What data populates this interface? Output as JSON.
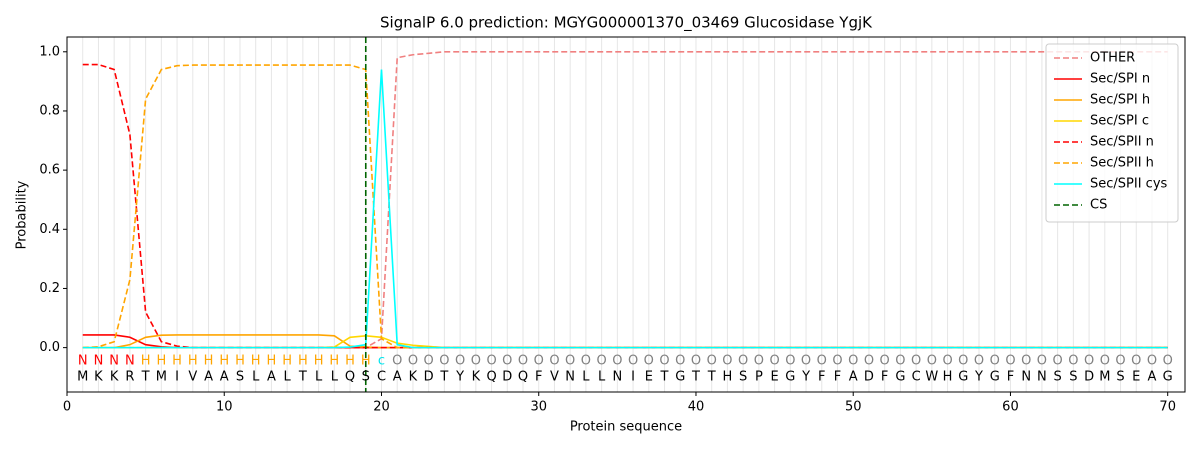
{
  "chart_data": {
    "type": "line",
    "title": "SignalP 6.0 prediction: MGYG000001370_03469 Glucosidase YgjK",
    "xlabel": "Protein sequence",
    "ylabel": "Probability",
    "x": [
      1,
      2,
      3,
      4,
      5,
      6,
      7,
      8,
      9,
      10,
      11,
      12,
      13,
      14,
      15,
      16,
      17,
      18,
      19,
      20,
      21,
      22,
      23,
      24,
      25,
      26,
      27,
      28,
      29,
      30,
      31,
      32,
      33,
      34,
      35,
      36,
      37,
      38,
      39,
      40,
      41,
      42,
      43,
      44,
      45,
      46,
      47,
      48,
      49,
      50,
      51,
      52,
      53,
      54,
      55,
      56,
      57,
      58,
      59,
      60,
      61,
      62,
      63,
      64,
      65,
      66,
      67,
      68,
      69,
      70
    ],
    "residues": [
      "M",
      "K",
      "K",
      "R",
      "T",
      "M",
      "I",
      "V",
      "A",
      "A",
      "S",
      "L",
      "A",
      "L",
      "T",
      "L",
      "L",
      "Q",
      "S",
      "C",
      "A",
      "K",
      "D",
      "T",
      "Y",
      "K",
      "Q",
      "D",
      "Q",
      "F",
      "V",
      "N",
      "L",
      "L",
      "N",
      "I",
      "E",
      "T",
      "G",
      "T",
      "T",
      "H",
      "S",
      "P",
      "E",
      "G",
      "Y",
      "F",
      "F",
      "A",
      "D",
      "F",
      "G",
      "C",
      "W",
      "H",
      "G",
      "Y",
      "G",
      "F",
      "N",
      "N",
      "S",
      "S",
      "D",
      "M",
      "S",
      "E",
      "A",
      "G"
    ],
    "region_labels": [
      "N",
      "N",
      "N",
      "N",
      "H",
      "H",
      "H",
      "H",
      "H",
      "H",
      "H",
      "H",
      "H",
      "H",
      "H",
      "H",
      "H",
      "H",
      "H",
      "c",
      "O",
      "O",
      "O",
      "O",
      "O",
      "O",
      "O",
      "O",
      "O",
      "O",
      "O",
      "O",
      "O",
      "O",
      "O",
      "O",
      "O",
      "O",
      "O",
      "O",
      "O",
      "O",
      "O",
      "O",
      "O",
      "O",
      "O",
      "O",
      "O",
      "O",
      "O",
      "O",
      "O",
      "O",
      "O",
      "O",
      "O",
      "O",
      "O",
      "O",
      "O",
      "O",
      "O",
      "O",
      "O",
      "O",
      "O",
      "O",
      "O",
      "O"
    ],
    "region_colors": {
      "N": "#ff0000",
      "H": "#ffa500",
      "c": "#00e5ee",
      "O": "#808080"
    },
    "series": [
      {
        "name": "OTHER",
        "color": "#f08080",
        "linestyle": "dashed",
        "values": [
          0,
          0,
          0,
          0,
          0,
          0,
          0,
          0,
          0,
          0,
          0,
          0,
          0,
          0,
          0,
          0,
          0,
          0,
          0,
          0.03,
          0.98,
          0.99,
          0.995,
          1,
          1,
          1,
          1,
          1,
          1,
          1,
          1,
          1,
          1,
          1,
          1,
          1,
          1,
          1,
          1,
          1,
          1,
          1,
          1,
          1,
          1,
          1,
          1,
          1,
          1,
          1,
          1,
          1,
          1,
          1,
          1,
          1,
          1,
          1,
          1,
          1,
          1,
          1,
          1,
          1,
          1,
          1,
          1,
          1,
          1,
          1
        ]
      },
      {
        "name": "Sec/SPI n",
        "color": "#ff0000",
        "linestyle": "solid",
        "values": [
          0.043,
          0.043,
          0.043,
          0.035,
          0.01,
          0.003,
          0,
          0,
          0,
          0,
          0,
          0,
          0,
          0,
          0,
          0,
          0,
          0,
          0,
          0,
          0,
          0,
          0,
          0,
          0,
          0,
          0,
          0,
          0,
          0,
          0,
          0,
          0,
          0,
          0,
          0,
          0,
          0,
          0,
          0,
          0,
          0,
          0,
          0,
          0,
          0,
          0,
          0,
          0,
          0,
          0,
          0,
          0,
          0,
          0,
          0,
          0,
          0,
          0,
          0,
          0,
          0,
          0,
          0,
          0,
          0,
          0,
          0,
          0,
          0
        ]
      },
      {
        "name": "Sec/SPI h",
        "color": "#ffa500",
        "linestyle": "solid",
        "values": [
          0,
          0,
          0,
          0.01,
          0.035,
          0.042,
          0.043,
          0.043,
          0.043,
          0.043,
          0.043,
          0.043,
          0.043,
          0.043,
          0.043,
          0.043,
          0.04,
          0.005,
          0.002,
          0,
          0,
          0,
          0,
          0,
          0,
          0,
          0,
          0,
          0,
          0,
          0,
          0,
          0,
          0,
          0,
          0,
          0,
          0,
          0,
          0,
          0,
          0,
          0,
          0,
          0,
          0,
          0,
          0,
          0,
          0,
          0,
          0,
          0,
          0,
          0,
          0,
          0,
          0,
          0,
          0,
          0,
          0,
          0,
          0,
          0,
          0,
          0,
          0,
          0,
          0
        ]
      },
      {
        "name": "Sec/SPI c",
        "color": "#ffd700",
        "linestyle": "solid",
        "values": [
          0,
          0,
          0,
          0,
          0,
          0,
          0,
          0,
          0,
          0,
          0,
          0,
          0,
          0,
          0,
          0,
          0.002,
          0.035,
          0.04,
          0.035,
          0.015,
          0.008,
          0.004,
          0,
          0,
          0,
          0,
          0,
          0,
          0,
          0,
          0,
          0,
          0,
          0,
          0,
          0,
          0,
          0,
          0,
          0,
          0,
          0,
          0,
          0,
          0,
          0,
          0,
          0,
          0,
          0,
          0,
          0,
          0,
          0,
          0,
          0,
          0,
          0,
          0,
          0,
          0,
          0,
          0,
          0,
          0,
          0,
          0,
          0,
          0
        ]
      },
      {
        "name": "Sec/SPII n",
        "color": "#ff0000",
        "linestyle": "dashed",
        "values": [
          0.957,
          0.957,
          0.94,
          0.72,
          0.12,
          0.02,
          0.005,
          0,
          0,
          0,
          0,
          0,
          0,
          0,
          0,
          0,
          0,
          0,
          0,
          0,
          0,
          0,
          0,
          0,
          0,
          0,
          0,
          0,
          0,
          0,
          0,
          0,
          0,
          0,
          0,
          0,
          0,
          0,
          0,
          0,
          0,
          0,
          0,
          0,
          0,
          0,
          0,
          0,
          0,
          0,
          0,
          0,
          0,
          0,
          0,
          0,
          0,
          0,
          0,
          0,
          0,
          0,
          0,
          0,
          0,
          0,
          0,
          0,
          0,
          0
        ]
      },
      {
        "name": "Sec/SPII h",
        "color": "#ffa500",
        "linestyle": "dashed",
        "values": [
          0,
          0.003,
          0.02,
          0.23,
          0.84,
          0.94,
          0.953,
          0.955,
          0.955,
          0.955,
          0.955,
          0.955,
          0.955,
          0.955,
          0.955,
          0.955,
          0.955,
          0.955,
          0.94,
          0.03,
          0,
          0,
          0,
          0,
          0,
          0,
          0,
          0,
          0,
          0,
          0,
          0,
          0,
          0,
          0,
          0,
          0,
          0,
          0,
          0,
          0,
          0,
          0,
          0,
          0,
          0,
          0,
          0,
          0,
          0,
          0,
          0,
          0,
          0,
          0,
          0,
          0,
          0,
          0,
          0,
          0,
          0,
          0,
          0,
          0,
          0,
          0,
          0,
          0,
          0
        ]
      },
      {
        "name": "Sec/SPII cys",
        "color": "#00ffff",
        "linestyle": "solid",
        "values": [
          0,
          0,
          0,
          0,
          0,
          0,
          0,
          0,
          0,
          0,
          0,
          0,
          0,
          0,
          0,
          0,
          0,
          0.002,
          0.01,
          0.94,
          0.01,
          0,
          0,
          0,
          0,
          0,
          0,
          0,
          0,
          0,
          0,
          0,
          0,
          0,
          0,
          0,
          0,
          0,
          0,
          0,
          0,
          0,
          0,
          0,
          0,
          0,
          0,
          0,
          0,
          0,
          0,
          0,
          0,
          0,
          0,
          0,
          0,
          0,
          0,
          0,
          0,
          0,
          0,
          0,
          0,
          0,
          0,
          0,
          0,
          0
        ]
      }
    ],
    "vlines": [
      {
        "name": "CS",
        "color": "#006400",
        "linestyle": "dashed",
        "x": 19
      }
    ],
    "xlim": [
      0,
      71.1
    ],
    "ylim": [
      -0.15,
      1.05
    ],
    "xticks": [
      0,
      10,
      20,
      30,
      40,
      50,
      60,
      70
    ],
    "yticks": [
      {
        "value": 0,
        "label": "0.0"
      },
      0.2,
      0.4,
      0.6,
      0.8,
      {
        "value": 1,
        "label": "1.0"
      }
    ],
    "legend": "upper right"
  }
}
